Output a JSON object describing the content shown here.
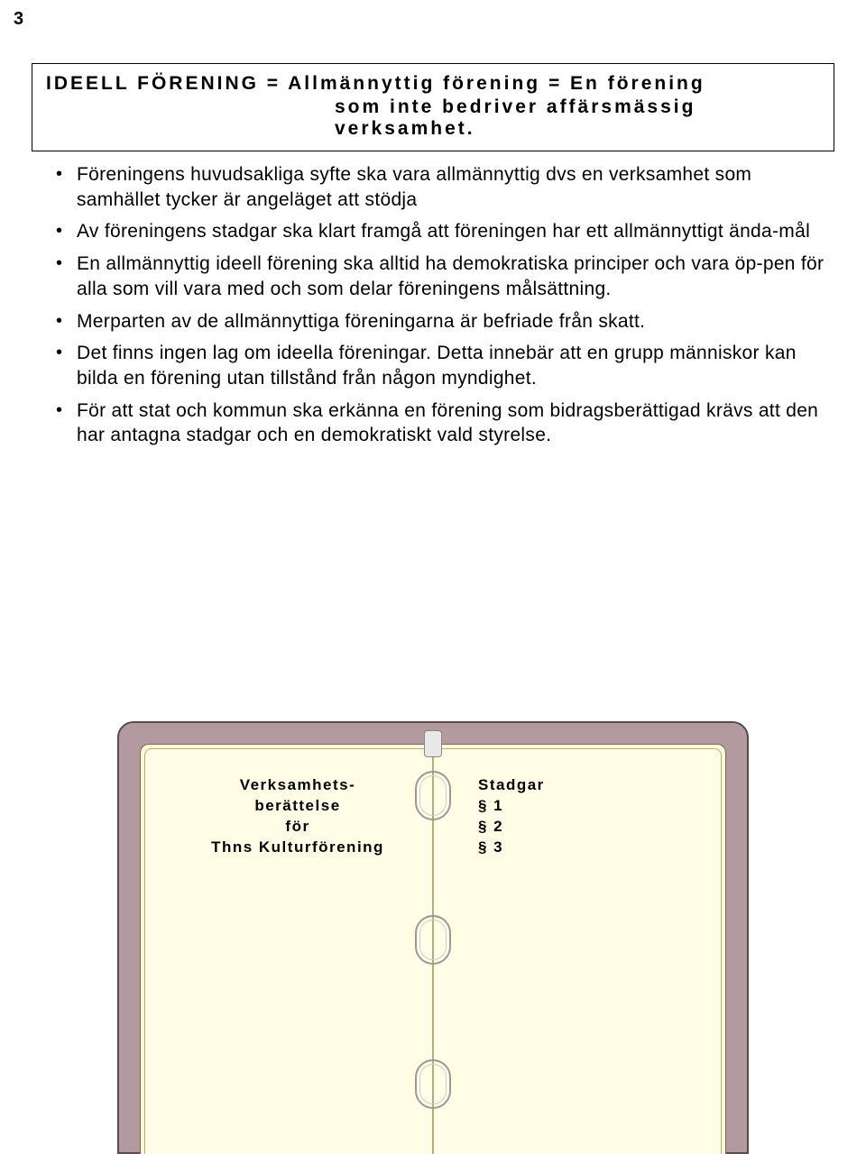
{
  "page_number": "3",
  "definition": {
    "line1": "IDEELL FÖRENING = Allmännyttig förening = En förening",
    "line2": "som inte bedriver affärsmässig verksamhet."
  },
  "bullets": [
    "Föreningens huvudsakliga syfte ska vara allmännyttig dvs en verksamhet som samhället tycker är angeläget att stödja",
    "Av föreningens stadgar ska klart framgå att föreningen har ett allmännyttigt ända-mål",
    "En allmännyttig ideell förening ska alltid ha demokratiska principer och vara öp-pen för alla som vill vara med och som delar föreningens målsättning.",
    "Merparten av de allmännyttiga föreningarna är befriade från skatt.",
    "Det finns ingen lag om ideella föreningar. Detta innebär att en grupp människor kan bilda en förening utan tillstånd från någon myndighet.",
    "För att stat och kommun ska erkänna en förening som bidragsberättigad krävs att den har antagna stadgar och en demokratiskt vald styrelse."
  ],
  "binder": {
    "cover_color": "#b39aa1",
    "cover_border": "#5a4a50",
    "page_color": "#fdf8d8",
    "page_inner_color": "#fffde6",
    "ring_color": "#999999",
    "left_page": {
      "line1": "Verksamhets-",
      "line2": "berättelse",
      "line3": "för",
      "line4": "Thns Kulturförening"
    },
    "right_page": {
      "line1": "Stadgar",
      "line2": "§ 1",
      "line3": "§ 2",
      "line4": "§ 3"
    }
  }
}
